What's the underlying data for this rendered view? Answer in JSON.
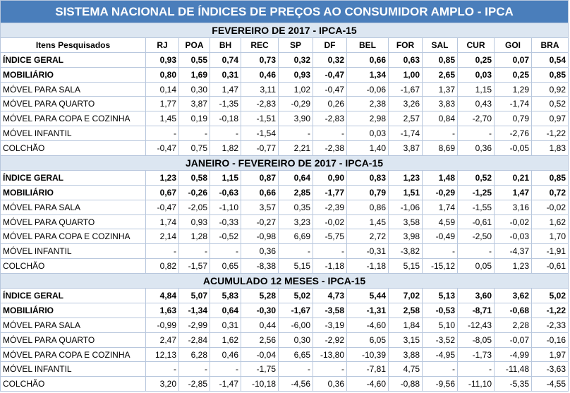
{
  "title": "SISTEMA NACIONAL DE ÍNDICES DE PREÇOS AO CONSUMIDOR AMPLO - IPCA",
  "columns": [
    "Itens Pesquisados",
    "RJ",
    "POA",
    "BH",
    "REC",
    "SP",
    "DF",
    "BEL",
    "FOR",
    "SAL",
    "CUR",
    "GOI",
    "BRA"
  ],
  "sections": [
    {
      "title": "FEVEREIRO DE 2017 - IPCA-15",
      "rows": [
        [
          "ÍNDICE GERAL",
          "0,93",
          "0,55",
          "0,74",
          "0,73",
          "0,32",
          "0,32",
          "0,66",
          "0,63",
          "0,85",
          "0,25",
          "0,07",
          "0,54"
        ],
        [
          "MOBILIÁRIO",
          "0,80",
          "1,69",
          "0,31",
          "0,46",
          "0,93",
          "-0,47",
          "1,34",
          "1,00",
          "2,65",
          "0,03",
          "0,25",
          "0,85"
        ],
        [
          "MÓVEL PARA SALA",
          "0,14",
          "0,30",
          "1,47",
          "3,11",
          "1,02",
          "-0,47",
          "-0,06",
          "-1,67",
          "1,37",
          "1,15",
          "1,29",
          "0,92"
        ],
        [
          "MÓVEL PARA QUARTO",
          "1,77",
          "3,87",
          "-1,35",
          "-2,83",
          "-0,29",
          "0,26",
          "2,38",
          "3,26",
          "3,83",
          "0,43",
          "-1,74",
          "0,52"
        ],
        [
          "MÓVEL PARA COPA E COZINHA",
          "1,45",
          "0,19",
          "-0,18",
          "-1,51",
          "3,90",
          "-2,83",
          "2,98",
          "2,57",
          "0,84",
          "-2,70",
          "0,79",
          "0,97"
        ],
        [
          "MÓVEL INFANTIL",
          "-",
          "-",
          "-",
          "-1,54",
          "-",
          "-",
          "0,03",
          "-1,74",
          "-",
          "-",
          "-2,76",
          "-1,22"
        ],
        [
          "COLCHÃO",
          "-0,47",
          "0,75",
          "1,82",
          "-0,77",
          "2,21",
          "-2,38",
          "1,40",
          "3,87",
          "8,69",
          "0,36",
          "-0,05",
          "1,83"
        ]
      ]
    },
    {
      "title": "JANEIRO - FEVEREIRO DE 2017 - IPCA-15",
      "rows": [
        [
          "ÍNDICE GERAL",
          "1,23",
          "0,58",
          "1,15",
          "0,87",
          "0,64",
          "0,90",
          "0,83",
          "1,23",
          "1,48",
          "0,52",
          "0,21",
          "0,85"
        ],
        [
          "MOBILIÁRIO",
          "0,67",
          "-0,26",
          "-0,63",
          "0,66",
          "2,85",
          "-1,77",
          "0,79",
          "1,51",
          "-0,29",
          "-1,25",
          "1,47",
          "0,72"
        ],
        [
          "MÓVEL PARA SALA",
          "-0,47",
          "-2,05",
          "-1,10",
          "3,57",
          "0,35",
          "-2,39",
          "0,86",
          "-1,06",
          "1,74",
          "-1,55",
          "3,16",
          "-0,02"
        ],
        [
          "MÓVEL PARA QUARTO",
          "1,74",
          "0,93",
          "-0,33",
          "-0,27",
          "3,23",
          "-0,02",
          "1,45",
          "3,58",
          "4,59",
          "-0,61",
          "-0,02",
          "1,62"
        ],
        [
          "MÓVEL PARA COPA E COZINHA",
          "2,14",
          "1,28",
          "-0,52",
          "-0,98",
          "6,69",
          "-5,75",
          "2,72",
          "3,98",
          "-0,49",
          "-2,50",
          "-0,03",
          "1,70"
        ],
        [
          "MÓVEL INFANTIL",
          "-",
          "-",
          "-",
          "0,36",
          "-",
          "-",
          "-0,31",
          "-3,82",
          "-",
          "-",
          "-4,37",
          "-1,91"
        ],
        [
          "COLCHÃO",
          "0,82",
          "-1,57",
          "0,65",
          "-8,38",
          "5,15",
          "-1,18",
          "-1,18",
          "5,15",
          "-15,12",
          "0,05",
          "1,23",
          "-0,61"
        ]
      ]
    },
    {
      "title": "ACUMULADO 12 MESES - IPCA-15",
      "rows": [
        [
          "ÍNDICE GERAL",
          "4,84",
          "5,07",
          "5,83",
          "5,28",
          "5,02",
          "4,73",
          "5,44",
          "7,02",
          "5,13",
          "3,60",
          "3,62",
          "5,02"
        ],
        [
          "MOBILIÁRIO",
          "1,63",
          "-1,34",
          "0,64",
          "-0,30",
          "-1,67",
          "-3,58",
          "-1,31",
          "2,58",
          "-0,53",
          "-8,71",
          "-0,68",
          "-1,22"
        ],
        [
          "MÓVEL PARA SALA",
          "-0,99",
          "-2,99",
          "0,31",
          "0,44",
          "-6,00",
          "-3,19",
          "-4,60",
          "1,84",
          "5,10",
          "-12,43",
          "2,28",
          "-2,33"
        ],
        [
          "MÓVEL PARA QUARTO",
          "2,47",
          "-2,84",
          "1,62",
          "2,56",
          "0,30",
          "-2,92",
          "6,05",
          "3,15",
          "-3,52",
          "-8,05",
          "-0,07",
          "-0,16"
        ],
        [
          "MÓVEL PARA COPA E COZINHA",
          "12,13",
          "6,28",
          "0,46",
          "-0,04",
          "6,65",
          "-13,80",
          "-10,39",
          "3,88",
          "-4,95",
          "-1,73",
          "-4,99",
          "1,97"
        ],
        [
          "MÓVEL INFANTIL",
          "-",
          "-",
          "-",
          "-1,75",
          "-",
          "-",
          "-7,81",
          "4,75",
          "-",
          "-",
          "-11,48",
          "-3,63"
        ],
        [
          "COLCHÃO",
          "3,20",
          "-2,85",
          "-1,47",
          "-10,18",
          "-4,56",
          "0,36",
          "-4,60",
          "-0,88",
          "-9,56",
          "-11,10",
          "-5,35",
          "-4,55"
        ]
      ]
    }
  ]
}
